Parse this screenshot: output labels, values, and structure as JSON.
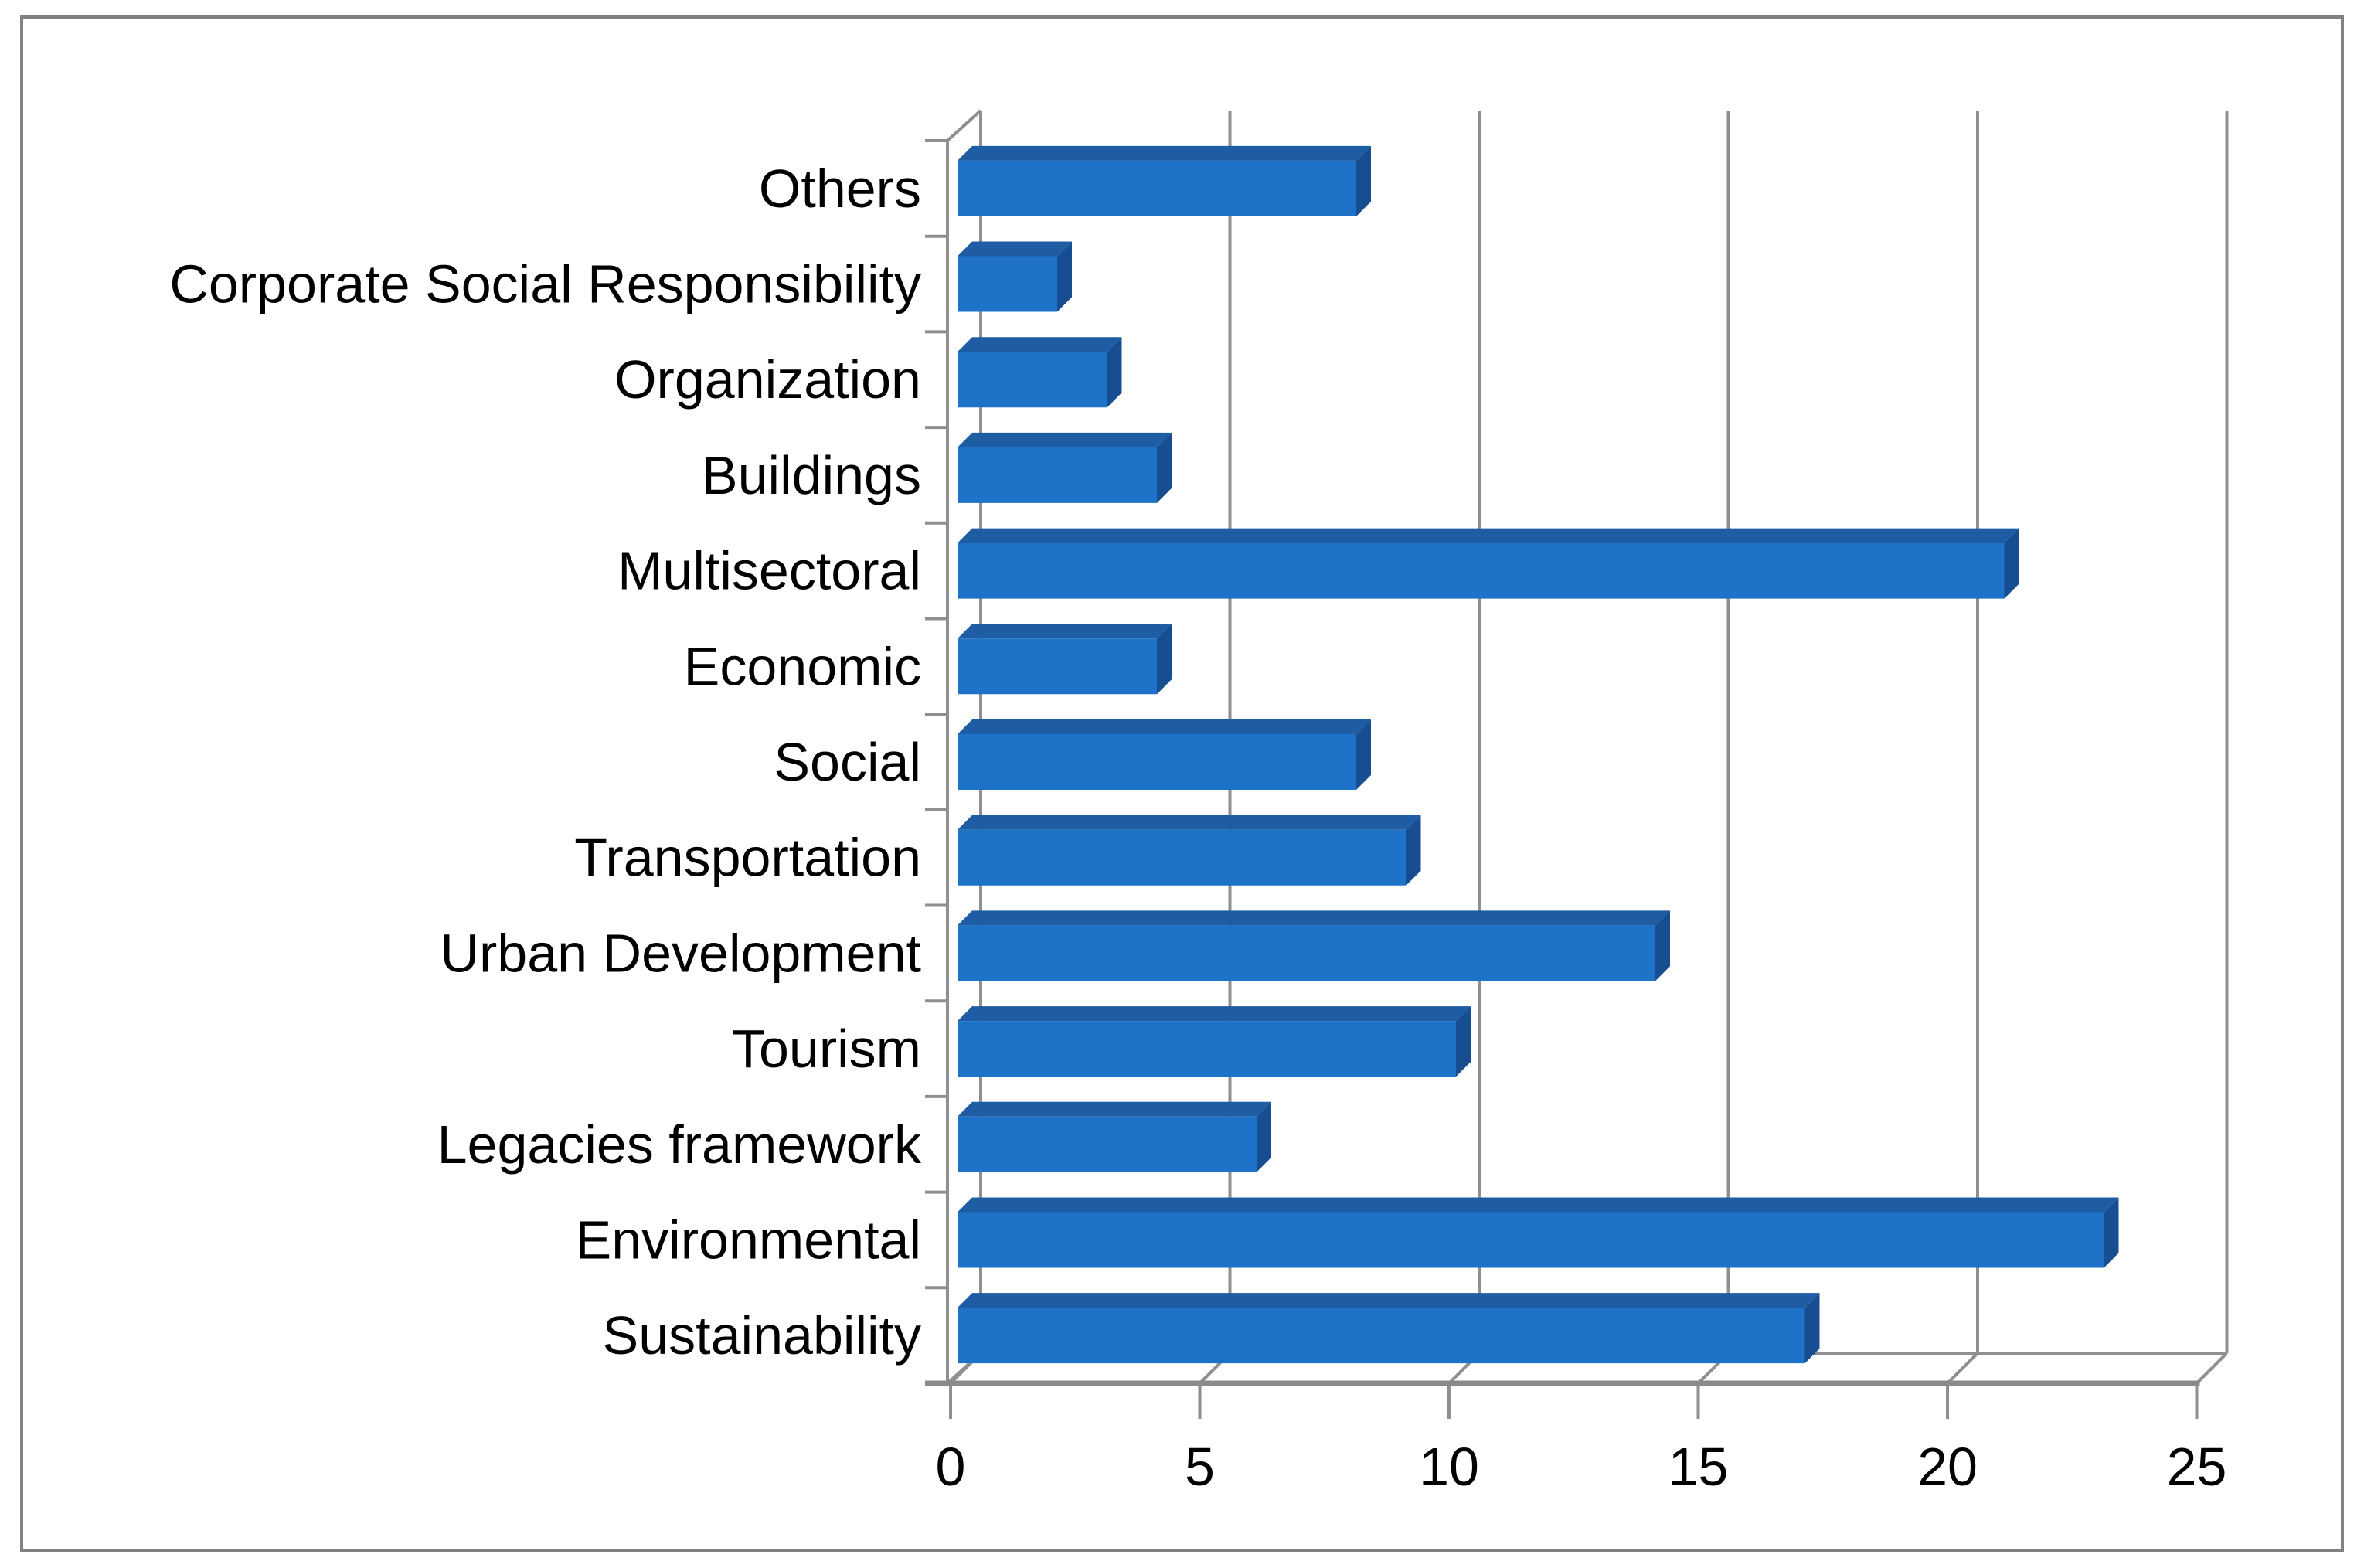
{
  "chart_data": {
    "type": "bar",
    "orientation": "horizontal",
    "style": "3d-excel-bar",
    "title": "",
    "xlabel": "",
    "ylabel": "",
    "categories": [
      "Others",
      "Corporate Social Responsibility",
      "Organization",
      "Buildings",
      "Multisectoral",
      "Economic",
      "Social",
      "Transportation",
      "Urban Development",
      "Tourism",
      "Legacies framework",
      "Environmental",
      "Sustainability"
    ],
    "values": [
      8,
      2,
      3,
      4,
      21,
      4,
      8,
      9,
      14,
      10,
      6,
      23,
      17
    ],
    "xlim": [
      0,
      25
    ],
    "x_ticks": [
      0,
      5,
      10,
      15,
      20,
      25
    ],
    "x_tick_labels": [
      "0",
      "5",
      "10",
      "15",
      "20",
      "25"
    ],
    "grid": true,
    "legend": false,
    "colors": {
      "bar_front": "#1E72C8",
      "bar_top": "#1E5DA4",
      "bar_end": "#174E91",
      "gridline": "#8F8F8F",
      "axis_line": "#8A8A8A",
      "frame_border": "#828282",
      "label_text": "#000000",
      "background": "#FFFFFF"
    }
  }
}
